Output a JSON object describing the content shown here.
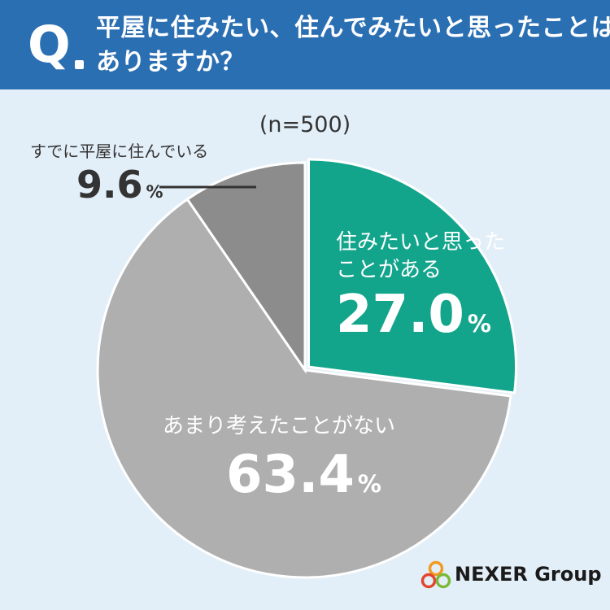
{
  "question": {
    "mark": "Q",
    "line1": "平屋に住みたい、住んでみたいと思ったことは",
    "line2": "ありますか？"
  },
  "sample_size": "(n=500)",
  "logo": {
    "text": "NEXER Group",
    "icon": "nexer-rings-logo"
  },
  "colors": {
    "header": "#2b6fb3",
    "background": "#e3eff8",
    "slice_yes": "#13a58c",
    "slice_no": "#b0afaf",
    "slice_already": "#8c8c8c"
  },
  "chart_data": {
    "type": "pie",
    "title": "",
    "slices": [
      {
        "label_lines": [
          "住みたいと思った",
          "ことがある"
        ],
        "value": 27.0,
        "display": "27.0",
        "color": "#13a58c",
        "label_color": "#ffffff",
        "exploded": true
      },
      {
        "label_lines": [
          "あまり考えたことがない"
        ],
        "value": 63.4,
        "display": "63.4",
        "color": "#b0afaf",
        "label_color": "#ffffff",
        "exploded": false
      },
      {
        "label_lines": [
          "すでに平屋に住んでいる"
        ],
        "value": 9.6,
        "display": "9.6",
        "color": "#8c8c8c",
        "label_color": "#333333",
        "exploded": false,
        "outside_label": true
      }
    ],
    "unit": "%"
  }
}
